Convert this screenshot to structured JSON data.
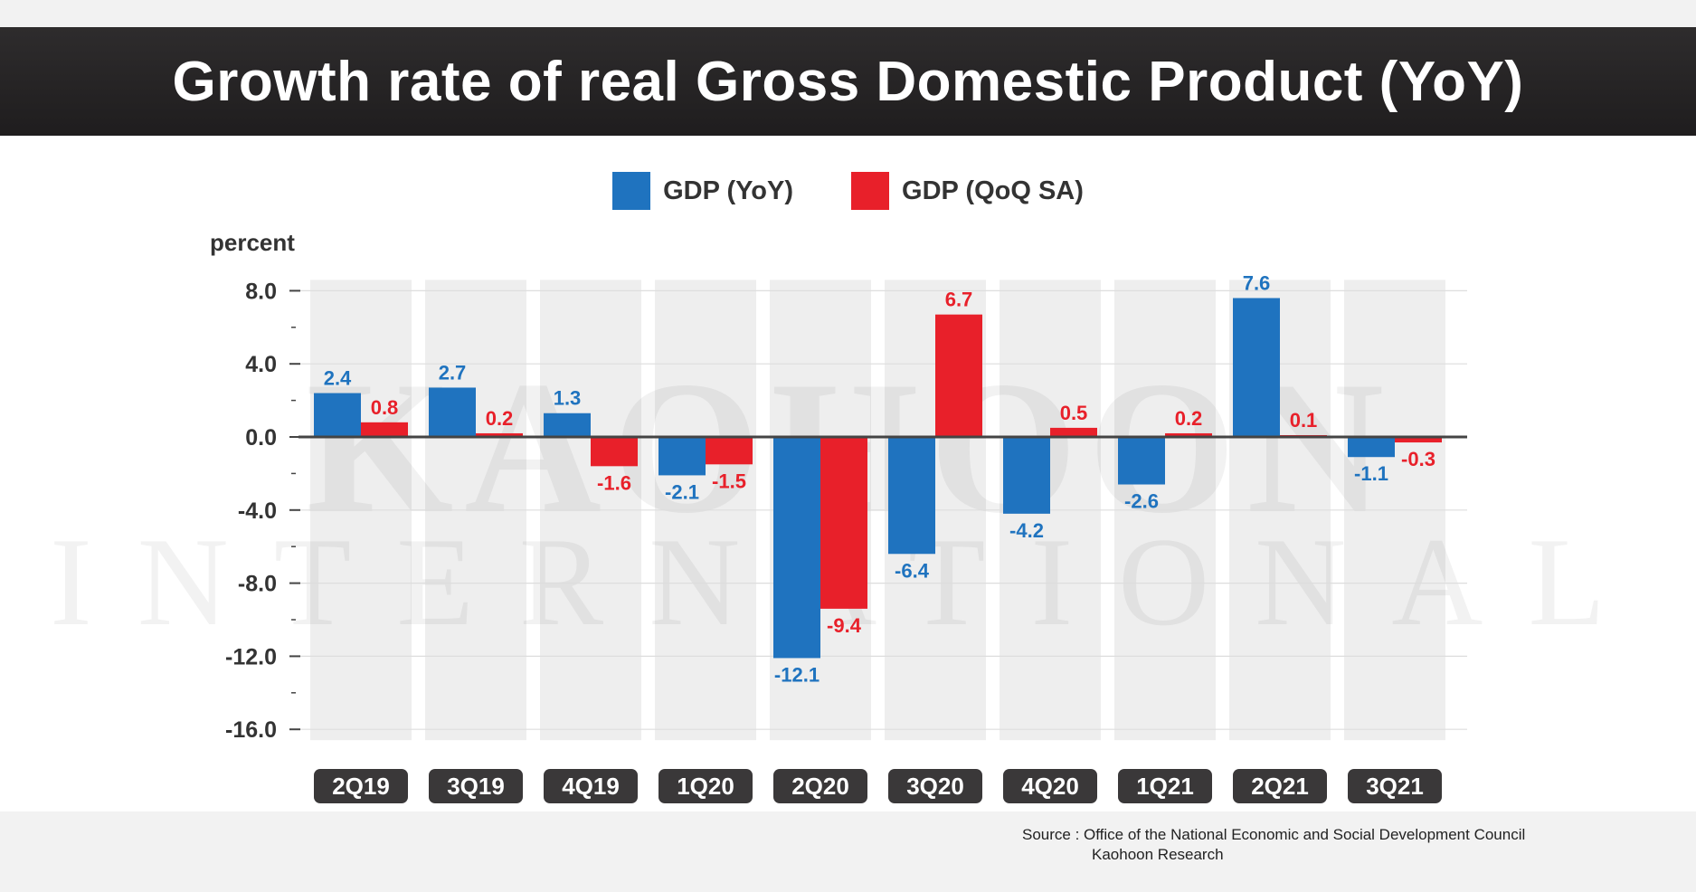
{
  "title": "Growth rate of real Gross Domestic Product (YoY)",
  "colors": {
    "yoy": "#1f73bf",
    "qoq": "#e8202a",
    "axis": "#444444",
    "grid": "#dddddd"
  },
  "watermark": {
    "line1": "KAOHOON",
    "line2": "INTERNATIONAL"
  },
  "source": {
    "line1": "Source : Office of the National Economic and Social Development Council",
    "line2": "Kaohoon Research"
  },
  "chart_data": {
    "type": "bar",
    "ylabel": "percent",
    "ylim": [
      -16,
      8
    ],
    "yticks": [
      8,
      4,
      0,
      -4,
      -8,
      -12,
      -16
    ],
    "ytick_labels": [
      "8.0",
      "4.0",
      "0.0",
      "-4.0",
      "-8.0",
      "-12.0",
      "-16.0"
    ],
    "categories": [
      "2Q19",
      "3Q19",
      "4Q19",
      "1Q20",
      "2Q20",
      "3Q20",
      "4Q20",
      "1Q21",
      "2Q21",
      "3Q21"
    ],
    "series": [
      {
        "name": "GDP (YoY)",
        "values": [
          2.4,
          2.7,
          1.3,
          -2.1,
          -12.1,
          -6.4,
          -4.2,
          -2.6,
          7.6,
          -1.1
        ]
      },
      {
        "name": "GDP (QoQ SA)",
        "values": [
          0.8,
          0.2,
          -1.6,
          -1.5,
          -9.4,
          6.7,
          0.5,
          0.2,
          0.1,
          -0.3
        ]
      }
    ],
    "legend": "top-center",
    "grid": true
  }
}
